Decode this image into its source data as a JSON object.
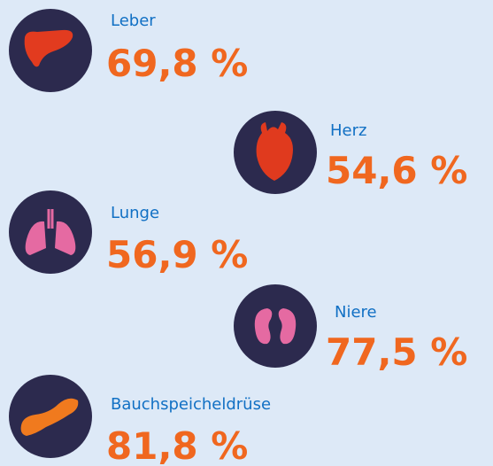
{
  "items": [
    {
      "label": "Leber",
      "value": "69,8 %"
    },
    {
      "label": "Herz",
      "value": "54,6 %"
    },
    {
      "label": "Lunge",
      "value": "56,9 %"
    },
    {
      "label": "Niere",
      "value": "77,5 %"
    },
    {
      "label": "Bauchspeicheldrüse",
      "value": "81,8 %"
    }
  ]
}
